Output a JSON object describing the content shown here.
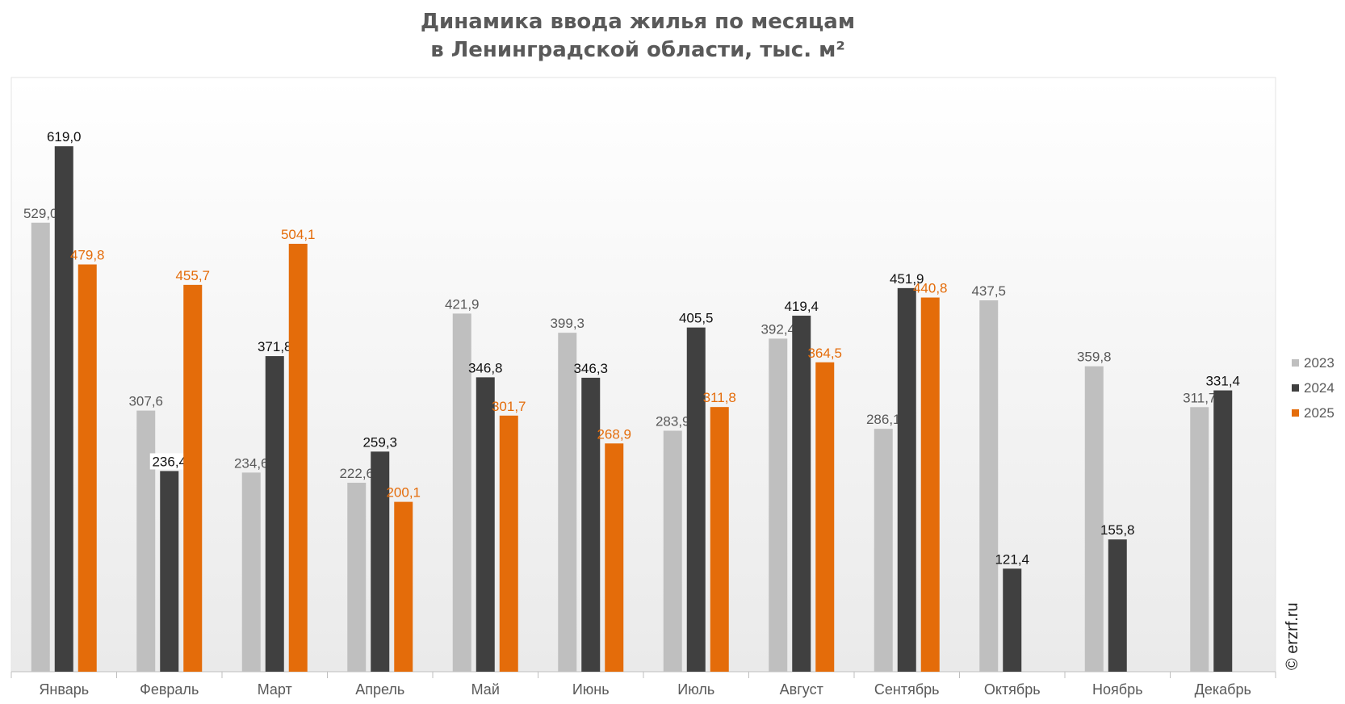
{
  "title_line1": "Динамика ввода жилья по месяцам",
  "title_line2": "в Ленинградской области, тыс. м²",
  "watermark": "© erzrf.ru",
  "chart_data": {
    "type": "bar",
    "title": "Динамика ввода жилья по месяцам в Ленинградской области, тыс. м²",
    "categories": [
      "Январь",
      "Февраль",
      "Март",
      "Апрель",
      "Май",
      "Июнь",
      "Июль",
      "Август",
      "Сентябрь",
      "Октябрь",
      "Ноябрь",
      "Декабрь"
    ],
    "series": [
      {
        "name": "2023",
        "color": "#bfbfbf",
        "label_color": "#595959",
        "values": [
          529.0,
          307.6,
          234.6,
          222.6,
          421.9,
          399.3,
          283.9,
          392.4,
          286.1,
          437.5,
          359.8,
          311.7
        ],
        "labels": [
          "529,0",
          "307,6",
          "234,6",
          "222,6",
          "421,9",
          "399,3",
          "283,9",
          "392,4",
          "286,1",
          "437,5",
          "359,8",
          "311,7"
        ]
      },
      {
        "name": "2024",
        "color": "#404040",
        "label_color": "#111111",
        "values": [
          619.0,
          236.4,
          371.8,
          259.3,
          346.8,
          346.3,
          405.5,
          419.4,
          451.9,
          121.4,
          155.8,
          331.4
        ],
        "labels": [
          "619,0",
          "236,4",
          "371,8",
          "259,3",
          "346,8",
          "346,3",
          "405,5",
          "419,4",
          "451,9",
          "121,4",
          "155,8",
          "331,4"
        ]
      },
      {
        "name": "2025",
        "color": "#e46c0a",
        "label_color": "#e46c0a",
        "values": [
          479.8,
          455.7,
          504.1,
          200.1,
          301.7,
          268.9,
          311.8,
          364.5,
          440.8,
          null,
          null,
          null
        ],
        "labels": [
          "479,8",
          "455,7",
          "504,1",
          "200,1",
          "301,7",
          "268,9",
          "311,8",
          "364,5",
          "440,8",
          null,
          null,
          null
        ]
      }
    ],
    "ylim": [
      0,
      700
    ],
    "grid": false,
    "legend_position": "right"
  }
}
